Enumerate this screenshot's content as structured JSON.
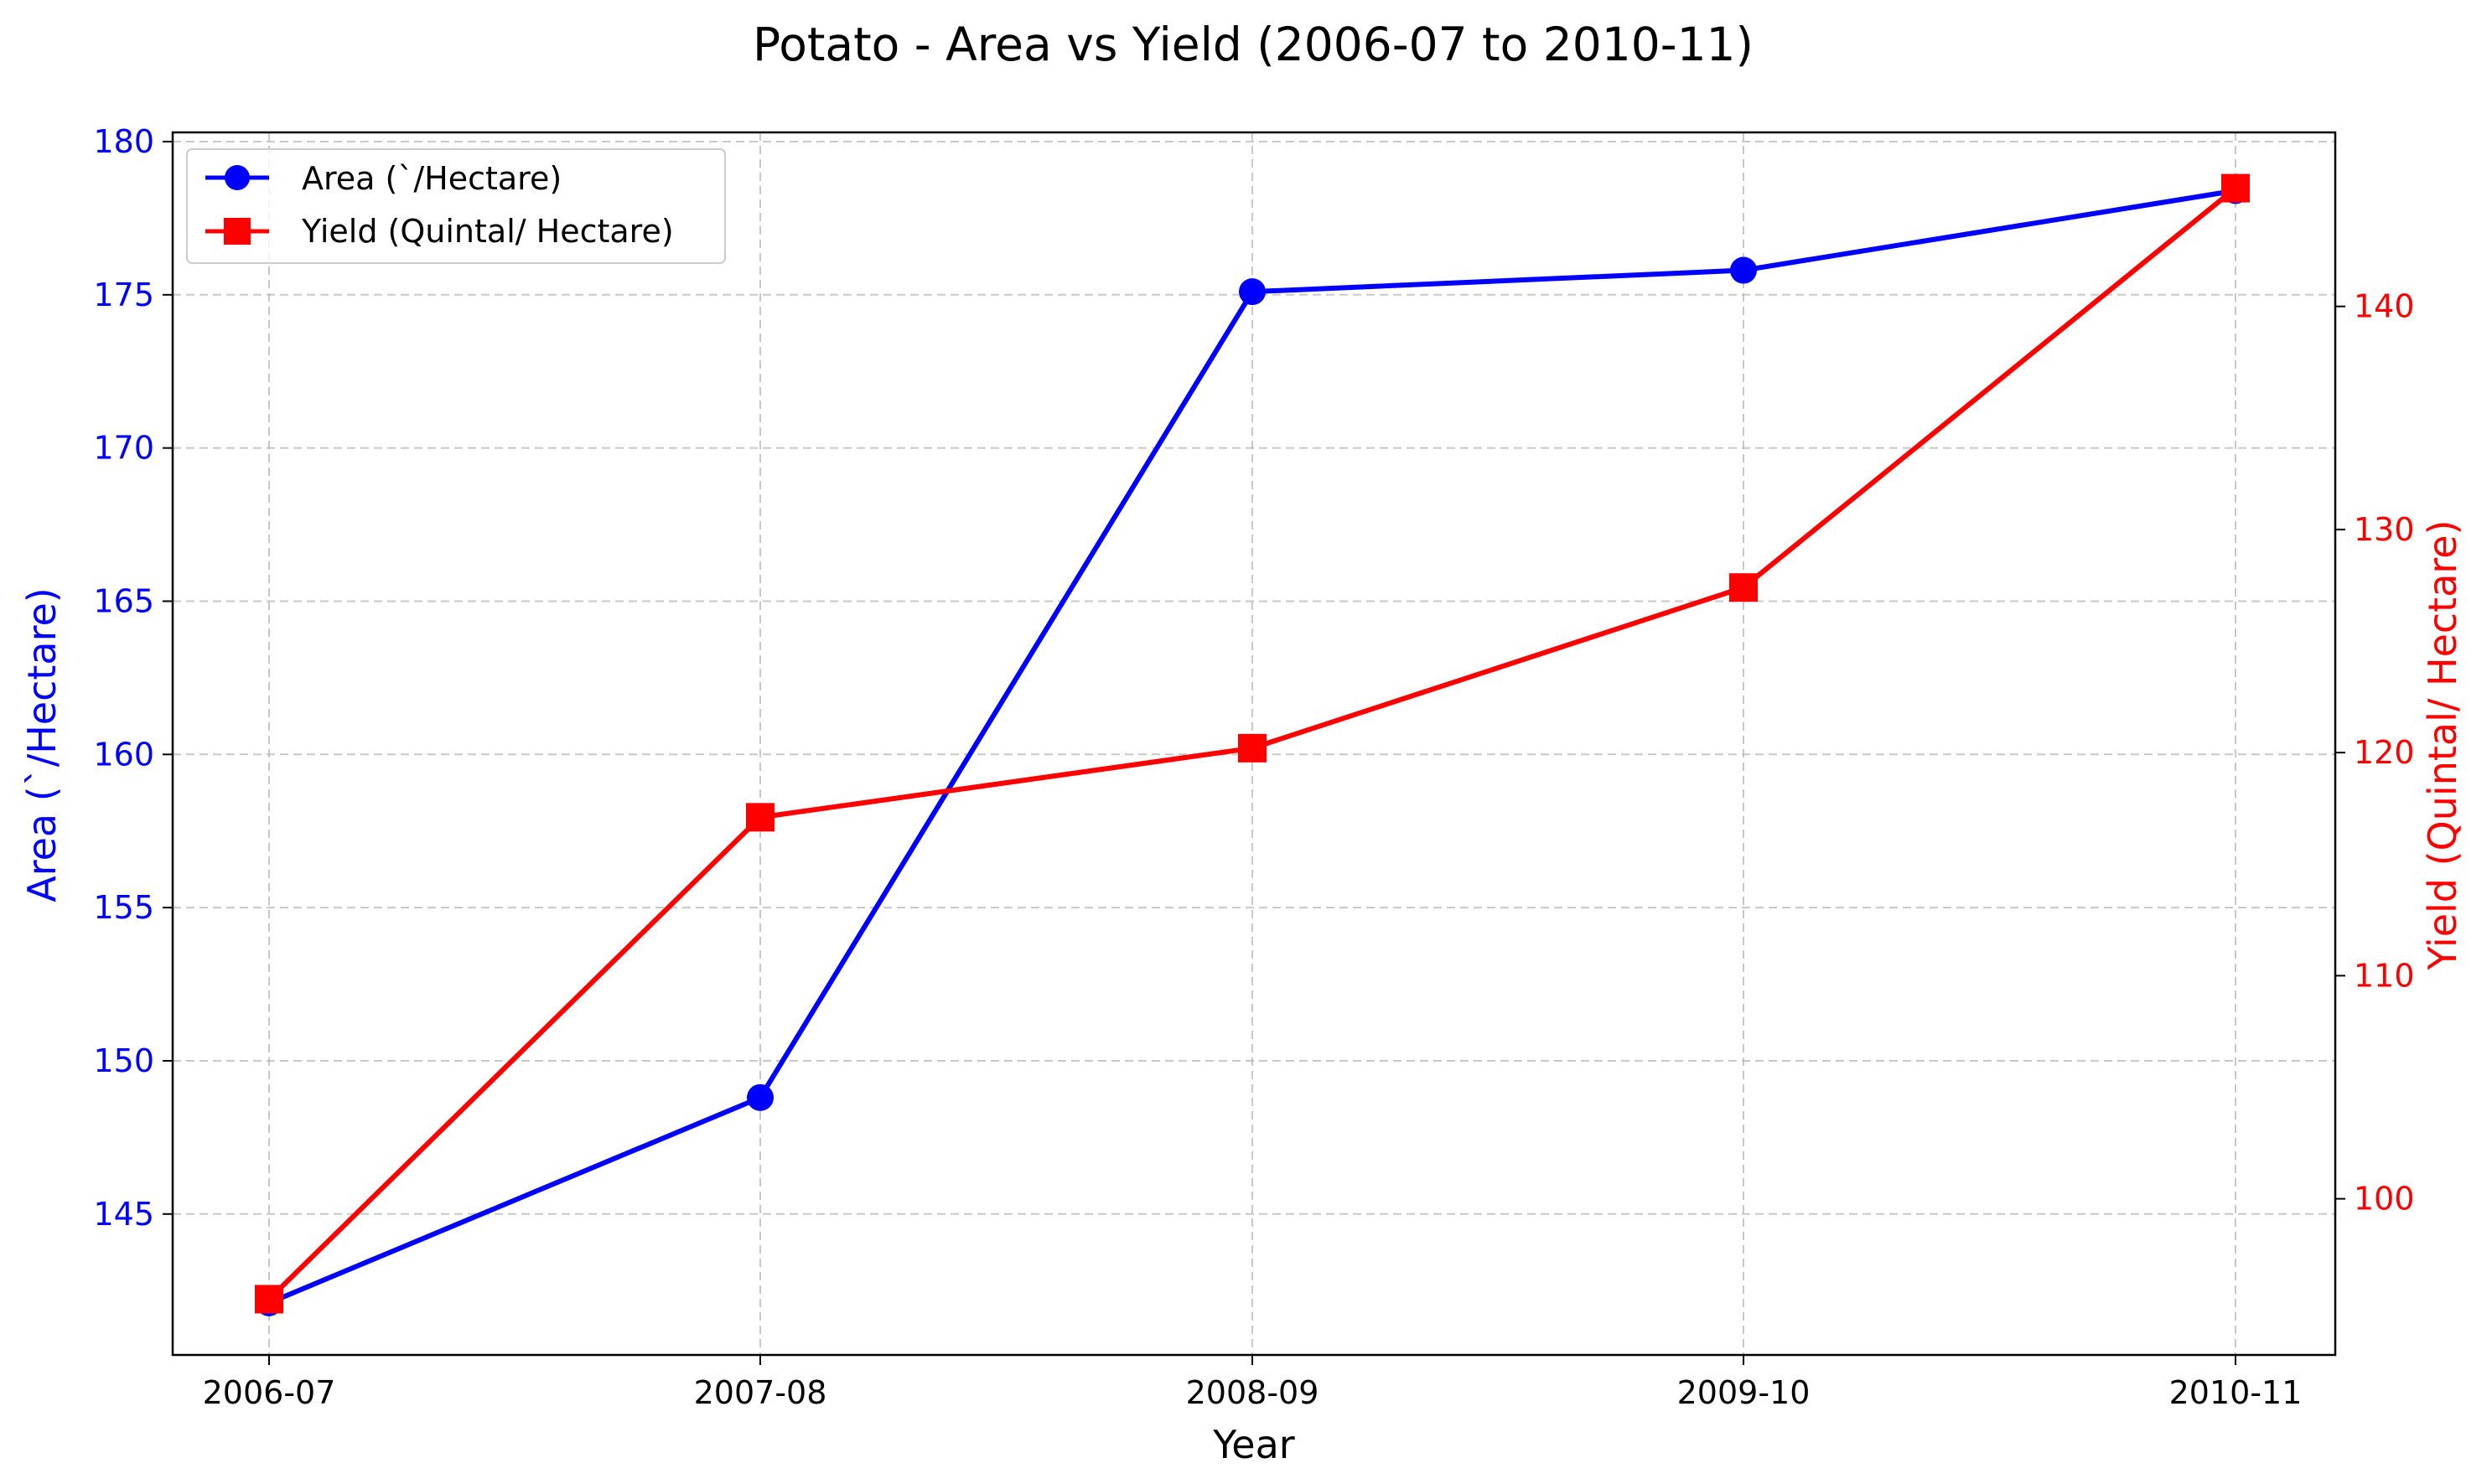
{
  "chart_data": {
    "type": "line",
    "title": "Potato - Area vs Yield (2006-07 to 2010-11)",
    "xlabel": "Year",
    "categories": [
      "2006-07",
      "2007-08",
      "2008-09",
      "2009-10",
      "2010-11"
    ],
    "grid": true,
    "legend_placement": "top-left",
    "series": [
      {
        "name": "Area (`/Hectare)",
        "axis": "left",
        "color": "#0000ff",
        "marker": "circle",
        "values": [
          142.1,
          148.8,
          175.1,
          175.8,
          178.4
        ]
      },
      {
        "name": "Yield (Quintal/ Hectare)",
        "axis": "right",
        "color": "#ff0000",
        "marker": "square",
        "values": [
          95.5,
          117.1,
          120.2,
          127.4,
          145.3
        ]
      }
    ],
    "left_axis": {
      "label": "Area (`/Hectare)",
      "color": "#0000ff",
      "ylim": [
        140.4,
        180.3
      ],
      "ticks": [
        145,
        150,
        155,
        160,
        165,
        170,
        175,
        180
      ]
    },
    "right_axis": {
      "label": "Yield (Quintal/ Hectare)",
      "color": "#ff0000",
      "ylim": [
        93.0,
        147.8
      ],
      "ticks": [
        100,
        110,
        120,
        130,
        140
      ]
    }
  }
}
